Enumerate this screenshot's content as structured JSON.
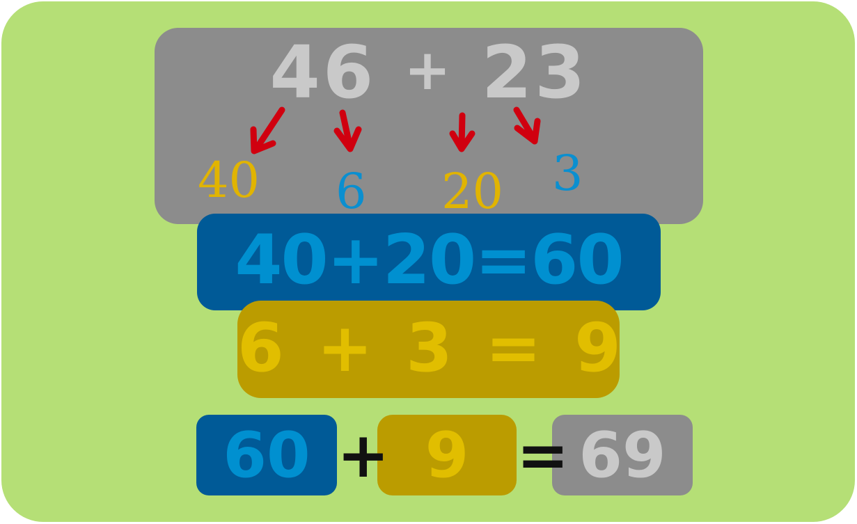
{
  "problem": {
    "a": "46",
    "op": "+",
    "b": "23"
  },
  "parts": {
    "tens_a": "40",
    "ones_a": "6",
    "tens_b": "20",
    "ones_b": "3"
  },
  "tens_sum": "40+20=60",
  "ones_sum": "6 + 3 = 9",
  "result": {
    "tens": "60",
    "plus": "+",
    "ones": "9",
    "equals": "=",
    "total": "69"
  },
  "colors": {
    "background": "#b5df76",
    "gray_box": "#8c8c8c",
    "blue_box": "#005a97",
    "gold_box": "#bb9c00",
    "arrow": "#d0000f"
  },
  "arrow_icon": "down-arrow-icon"
}
